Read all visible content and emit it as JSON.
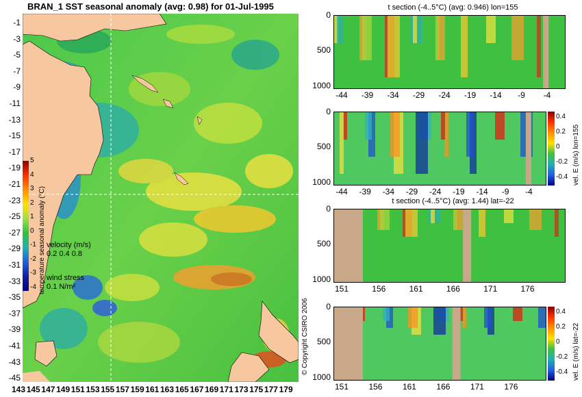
{
  "main_map": {
    "title": "BRAN_1  SST seasonal anomaly (avg: 0.98) for 01-Jul-1995",
    "lat_labels": [
      "-1",
      "-3",
      "-5",
      "-7",
      "-9",
      "-11",
      "-13",
      "-15",
      "-17",
      "-19",
      "-21",
      "-23",
      "-25",
      "-27",
      "-29",
      "-31",
      "-33",
      "-35",
      "-37",
      "-39",
      "-41",
      "-43",
      "-45"
    ],
    "lon_labels": [
      "143",
      "145",
      "147",
      "149",
      "151",
      "153",
      "155",
      "157",
      "159",
      "161",
      "163",
      "165",
      "167",
      "169",
      "171",
      "173",
      "175",
      "177",
      "179"
    ],
    "colorbar": {
      "label": "temperature seasonal anomaly (°C)",
      "ticks": [
        "5",
        "4",
        "3",
        "2",
        "1",
        "0",
        "-1",
        "-2",
        "-3",
        "-4"
      ]
    },
    "velocity_legend": {
      "title": "velocity (m/s)",
      "values": "0.2 0.4 0.8"
    },
    "wind_legend": {
      "title": "wind stress",
      "value": "0.1 N/m²"
    },
    "copyright": "© Copyright CSIRO 2006"
  },
  "sections": [
    {
      "title": "t section (-4..5°C) (avg: 0.946) lon=155",
      "y_ticks": [
        "0",
        "500",
        "1000"
      ],
      "x_ticks": [
        "-44",
        "-39",
        "-34",
        "-29",
        "-24",
        "-19",
        "-14",
        "-9",
        "-4"
      ]
    },
    {
      "title": "",
      "y_ticks": [
        "0",
        "500",
        "1000"
      ],
      "x_ticks": [
        "-44",
        "-39",
        "-34",
        "-29",
        "-24",
        "-19",
        "-14",
        "-9",
        "-4"
      ],
      "colorbar_label": "vel. E (m/s) lon=155",
      "colorbar_ticks": [
        "0.4",
        "0.2",
        "0",
        "-0.2",
        "-0.4"
      ]
    },
    {
      "title": "t section (-4..5°C) (avg: 1.44) lat=-22",
      "y_ticks": [
        "0",
        "500",
        "1000"
      ],
      "x_ticks": [
        "151",
        "156",
        "161",
        "166",
        "171",
        "176"
      ]
    },
    {
      "title": "",
      "y_ticks": [
        "0",
        "500",
        "1000"
      ],
      "x_ticks": [
        "151",
        "156",
        "161",
        "166",
        "171",
        "176"
      ],
      "colorbar_label": "vel. E (m/s) lat=-22",
      "colorbar_ticks": [
        "0.4",
        "0.2",
        "0",
        "-0.2",
        "-0.4"
      ]
    }
  ],
  "colors": {
    "land": "#f7c8a0",
    "section_land": "#c8a888",
    "ocean_base": "#3cb83c",
    "accent_magenta": "#ff00ff"
  }
}
